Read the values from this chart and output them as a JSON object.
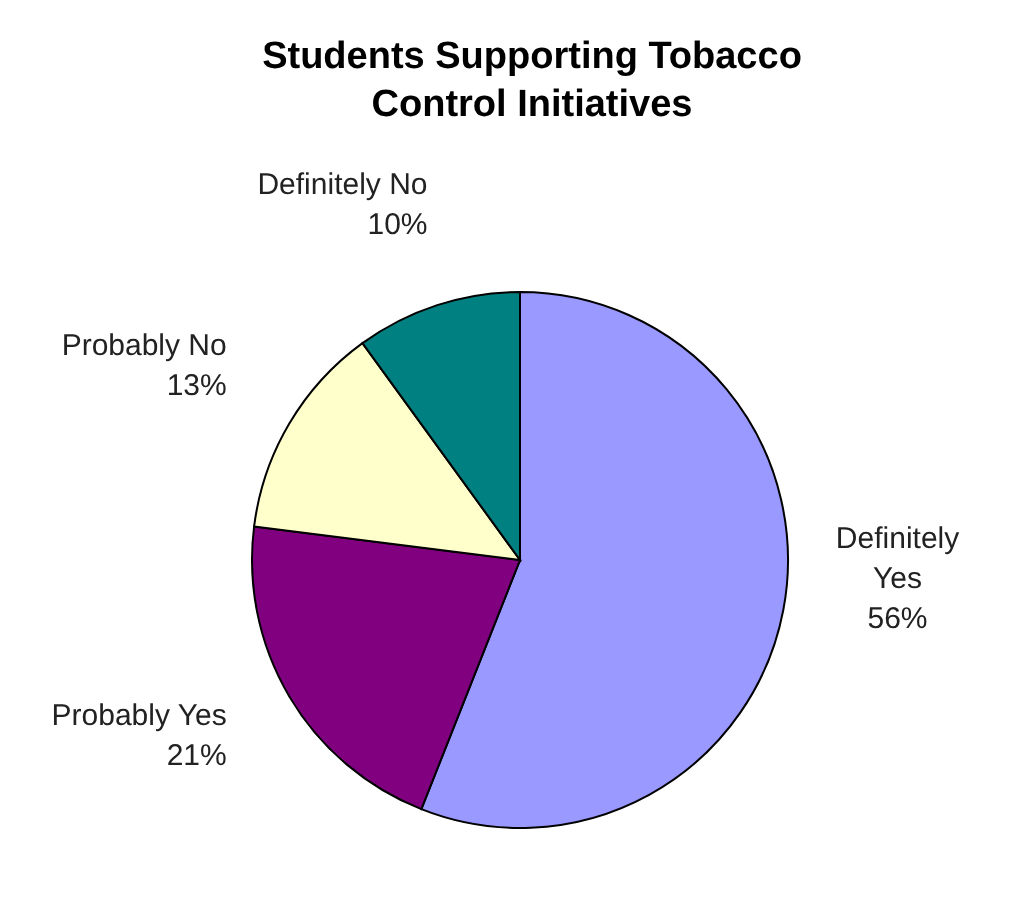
{
  "chart_data": {
    "type": "pie",
    "title": "Students Supporting Tobacco Control Initiatives",
    "categories": [
      "Definitely Yes",
      "Probably Yes",
      "Probably No",
      "Definitely No"
    ],
    "values": [
      56,
      21,
      13,
      10
    ],
    "value_labels": [
      "56%",
      "21%",
      "13%",
      "10%"
    ],
    "colors": [
      "#9999ff",
      "#800080",
      "#ffffcc",
      "#008080"
    ]
  }
}
